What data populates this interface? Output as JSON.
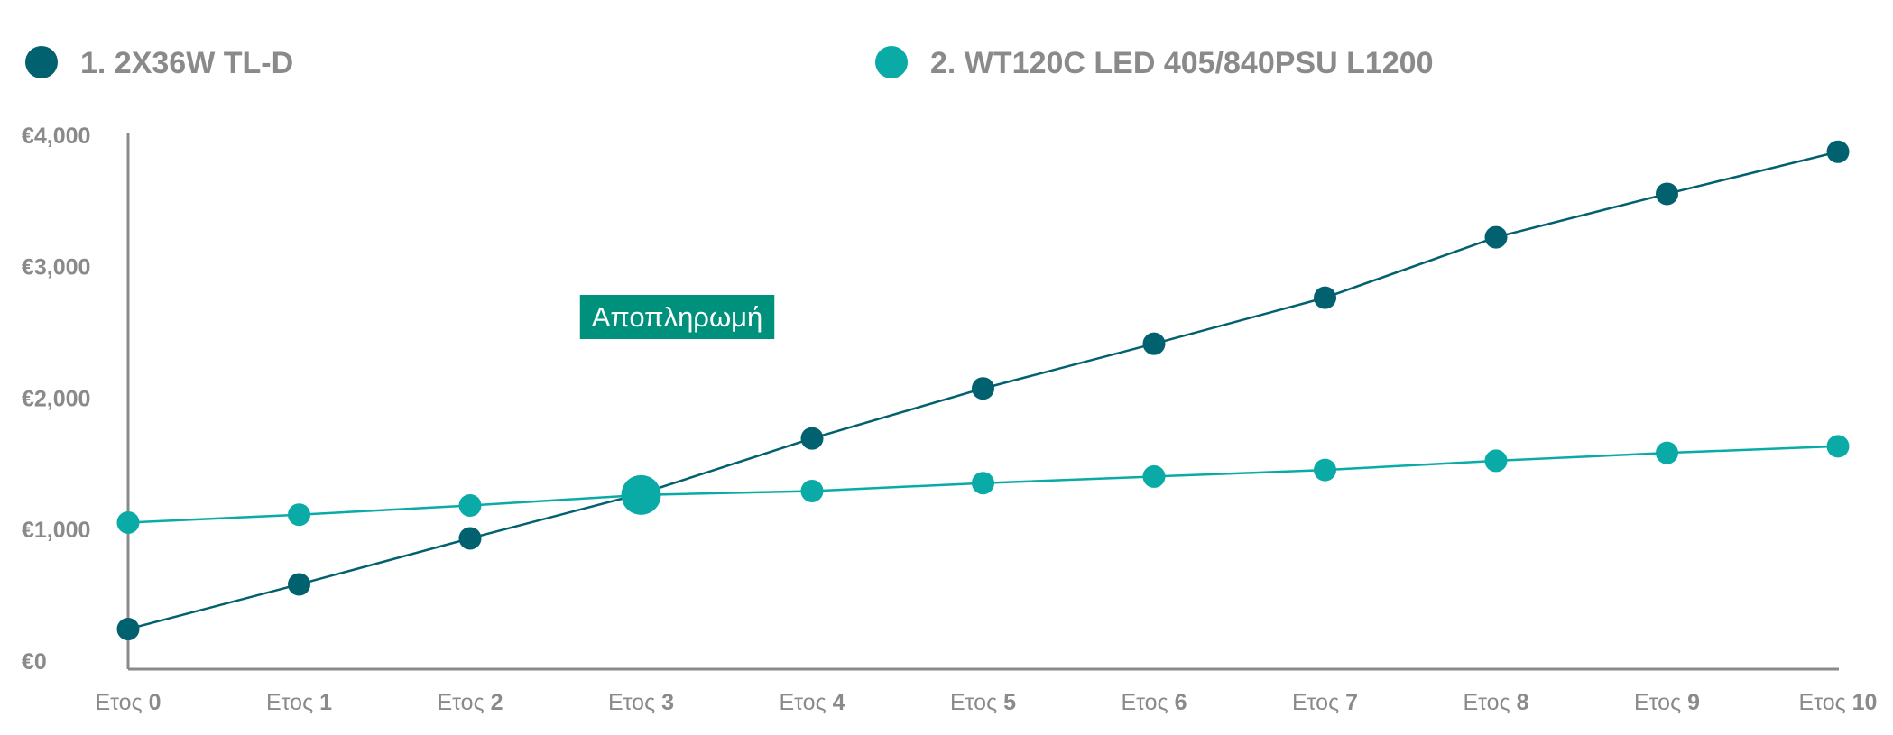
{
  "chart_data": {
    "type": "line",
    "categories": [
      {
        "prefix": "Ετος",
        "num": "0"
      },
      {
        "prefix": "Ετος",
        "num": "1"
      },
      {
        "prefix": "Ετος",
        "num": "2"
      },
      {
        "prefix": "Ετος",
        "num": "3"
      },
      {
        "prefix": "Ετος",
        "num": "4"
      },
      {
        "prefix": "Ετος",
        "num": "5"
      },
      {
        "prefix": "Ετος",
        "num": "6"
      },
      {
        "prefix": "Ετος",
        "num": "7"
      },
      {
        "prefix": "Ετος",
        "num": "8"
      },
      {
        "prefix": "Ετος",
        "num": "9"
      },
      {
        "prefix": "Ετος",
        "num": "10"
      }
    ],
    "series": [
      {
        "name": "1. 2X36W TL-D",
        "color": "#02616e",
        "values": [
          250,
          590,
          940,
          1280,
          1700,
          2080,
          2420,
          2770,
          3230,
          3560,
          3880
        ]
      },
      {
        "name": "2. WT120C LED 405/840PSU L1200",
        "color": "#0aaba7",
        "values": [
          1060,
          1120,
          1190,
          1270,
          1300,
          1360,
          1410,
          1460,
          1530,
          1590,
          1640
        ]
      }
    ],
    "yticks": [
      {
        "value": 0,
        "label": "€0"
      },
      {
        "value": 1000,
        "label": "€1,000"
      },
      {
        "value": 2000,
        "label": "€2,000"
      },
      {
        "value": 3000,
        "label": "€3,000"
      },
      {
        "value": 4000,
        "label": "€4,000"
      }
    ],
    "ylim": [
      0,
      4000
    ],
    "annotation": {
      "text": "Αποπληρωμή",
      "category_index": 3,
      "color": "#00917d"
    },
    "legend_position": "top",
    "grid": false,
    "title": "",
    "xlabel": "",
    "ylabel": ""
  }
}
